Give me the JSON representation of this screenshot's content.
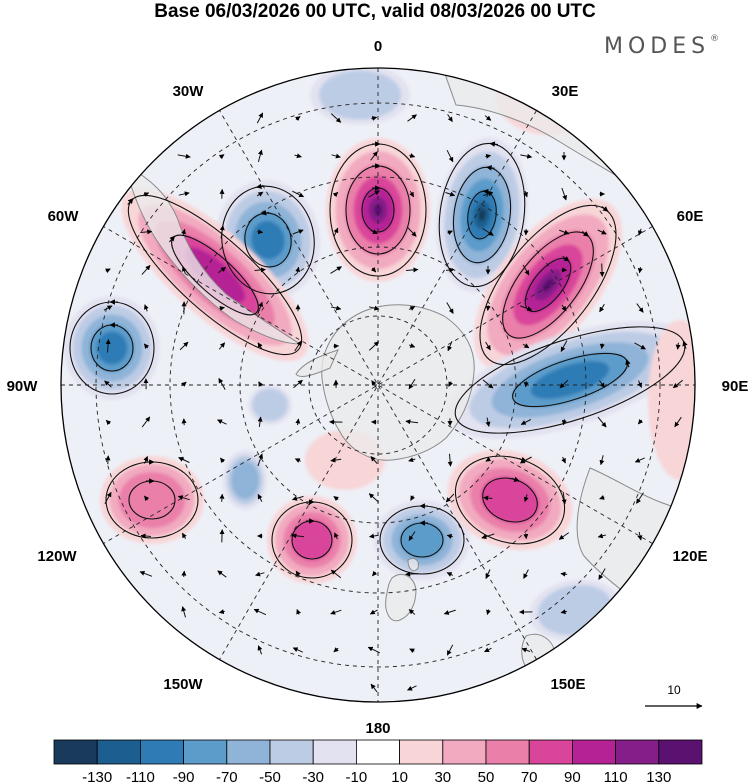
{
  "title": "Base 06/03/2026 00 UTC, valid 08/03/2026 00 UTC",
  "brand": "MODES",
  "brand_mark": "®",
  "map": {
    "projection": "south polar stereographic",
    "longitude_labels": {
      "lon_0": "0",
      "lon_30e": "30E",
      "lon_60e": "60E",
      "lon_90e": "90E",
      "lon_120e": "120E",
      "lon_150e": "150E",
      "lon_180": "180",
      "lon_150w": "150W",
      "lon_120w": "120W",
      "lon_90w": "90W",
      "lon_60w": "60W",
      "lon_30w": "30W"
    },
    "vector_reference": "10"
  },
  "colorbar": {
    "ticks": [
      "-130",
      "-110",
      "-90",
      "-70",
      "-50",
      "-30",
      "-10",
      "10",
      "30",
      "50",
      "70",
      "90",
      "110",
      "130"
    ],
    "colors": [
      "#193a5a",
      "#1c5e8f",
      "#2f7bb5",
      "#5b9ccb",
      "#8fb4d8",
      "#bdcce5",
      "#e2e2f0",
      "#ffffff",
      "#f8d6d8",
      "#f2aac0",
      "#ea80aa",
      "#d9459a",
      "#b52295",
      "#851e88",
      "#5a1170"
    ]
  },
  "colors": {
    "land": "#ebebeb",
    "negative_strong": "#1c5e8f",
    "positive_strong": "#851e88"
  }
}
